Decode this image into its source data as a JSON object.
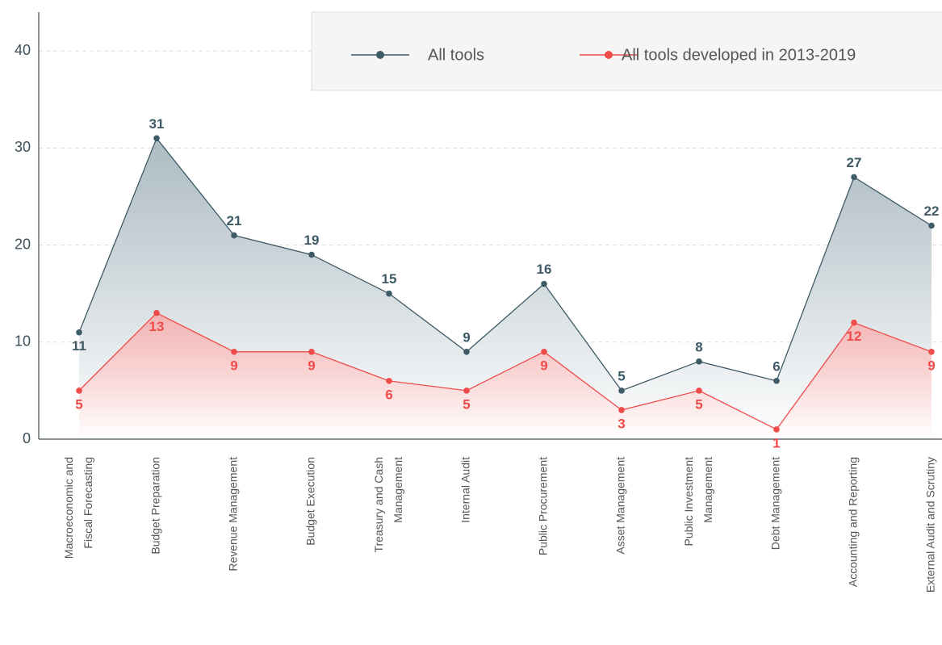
{
  "chart_data": {
    "type": "line",
    "categories": [
      "Macroeconomic and Fiscal Forecasting",
      "Budget Preparation",
      "Revenue Management",
      "Budget Execution",
      "Treasury and Cash Management",
      "Internal Audit",
      "Public Procurement",
      "Asset Management",
      "Public Investment Management",
      "Debt Management",
      "Accounting and Reporting",
      "External Audit and Scrutiny"
    ],
    "series": [
      {
        "name": "All tools",
        "color": "#3d5a66",
        "values": [
          11,
          31,
          21,
          19,
          15,
          9,
          16,
          5,
          8,
          6,
          27,
          22
        ]
      },
      {
        "name": "All tools developed in 2013-2019",
        "color": "#ef4b4b",
        "values": [
          5,
          13,
          9,
          9,
          6,
          5,
          9,
          3,
          5,
          1,
          12,
          9
        ]
      }
    ],
    "ylim": [
      0,
      44
    ],
    "yticks": [
      0,
      10,
      20,
      30,
      40
    ],
    "grid": true,
    "legend": "top-right"
  }
}
